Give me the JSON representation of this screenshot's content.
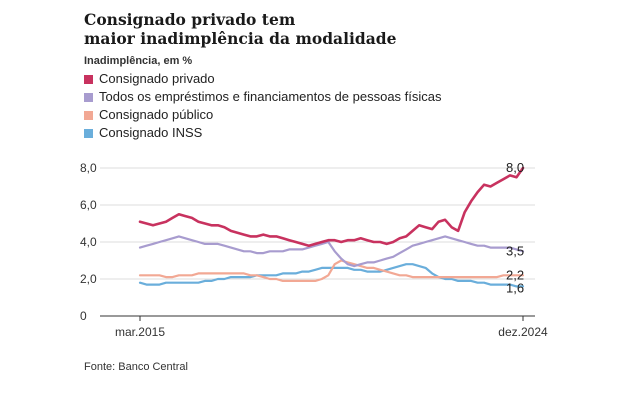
{
  "title_line1": "Consignado privado tem",
  "title_line2": "maior inadimplência da modalidade",
  "source": "Fonte: Banco Central",
  "chart_data": {
    "type": "line",
    "title": "Consignado privado tem maior inadimplência da modalidade",
    "ylabel": "Inadimplência, em %",
    "ylim": [
      0,
      8
    ],
    "yticks": [
      "0",
      "2,0",
      "4,0",
      "6,0",
      "8,0"
    ],
    "yticks_values": [
      0,
      2,
      4,
      6,
      8
    ],
    "xticks": [
      "mar.2015",
      "dez.2024"
    ],
    "x_start": "2015-03",
    "x_end": "2024-12",
    "grid": true,
    "legend_position": "top-left",
    "series": [
      {
        "name": "Consignado privado",
        "color": "#c8325f",
        "end_label": "8,0",
        "values": [
          5.1,
          5.0,
          4.9,
          5.0,
          5.1,
          5.3,
          5.5,
          5.4,
          5.3,
          5.1,
          5.0,
          4.9,
          4.9,
          4.8,
          4.6,
          4.5,
          4.4,
          4.3,
          4.3,
          4.4,
          4.3,
          4.3,
          4.2,
          4.1,
          4.0,
          3.9,
          3.8,
          3.9,
          4.0,
          4.1,
          4.1,
          4.0,
          4.1,
          4.1,
          4.2,
          4.1,
          4.0,
          4.0,
          3.9,
          4.0,
          4.2,
          4.3,
          4.6,
          4.9,
          4.8,
          4.7,
          5.1,
          5.2,
          4.8,
          4.6,
          5.6,
          6.2,
          6.7,
          7.1,
          7.0,
          7.2,
          7.4,
          7.6,
          7.5,
          8.0
        ]
      },
      {
        "name": "Todos os empréstimos e financiamentos de pessoas físicas",
        "color": "#a89ccf",
        "end_label": "3,5",
        "values": [
          3.7,
          3.8,
          3.9,
          4.0,
          4.1,
          4.2,
          4.3,
          4.2,
          4.1,
          4.0,
          3.9,
          3.9,
          3.9,
          3.8,
          3.7,
          3.6,
          3.5,
          3.5,
          3.4,
          3.4,
          3.5,
          3.5,
          3.5,
          3.6,
          3.6,
          3.6,
          3.7,
          3.8,
          3.9,
          4.0,
          3.5,
          3.1,
          2.8,
          2.7,
          2.8,
          2.9,
          2.9,
          3.0,
          3.1,
          3.2,
          3.4,
          3.6,
          3.8,
          3.9,
          4.0,
          4.1,
          4.2,
          4.3,
          4.2,
          4.1,
          4.0,
          3.9,
          3.8,
          3.8,
          3.7,
          3.7,
          3.7,
          3.7,
          3.6,
          3.5
        ]
      },
      {
        "name": "Consignado público",
        "color": "#f2a894",
        "end_label": "2,2",
        "values": [
          2.2,
          2.2,
          2.2,
          2.2,
          2.1,
          2.1,
          2.2,
          2.2,
          2.2,
          2.3,
          2.3,
          2.3,
          2.3,
          2.3,
          2.3,
          2.3,
          2.3,
          2.2,
          2.2,
          2.1,
          2.0,
          2.0,
          1.9,
          1.9,
          1.9,
          1.9,
          1.9,
          1.9,
          2.0,
          2.2,
          2.8,
          3.0,
          2.9,
          2.8,
          2.7,
          2.6,
          2.6,
          2.5,
          2.4,
          2.3,
          2.2,
          2.2,
          2.1,
          2.1,
          2.1,
          2.1,
          2.1,
          2.1,
          2.1,
          2.1,
          2.1,
          2.1,
          2.1,
          2.1,
          2.1,
          2.1,
          2.2,
          2.2,
          2.2,
          2.2
        ]
      },
      {
        "name": "Consignado INSS",
        "color": "#6aaedb",
        "end_label": "1,6",
        "values": [
          1.8,
          1.7,
          1.7,
          1.7,
          1.8,
          1.8,
          1.8,
          1.8,
          1.8,
          1.8,
          1.9,
          1.9,
          2.0,
          2.0,
          2.1,
          2.1,
          2.1,
          2.1,
          2.2,
          2.2,
          2.2,
          2.2,
          2.3,
          2.3,
          2.3,
          2.4,
          2.4,
          2.5,
          2.6,
          2.6,
          2.6,
          2.6,
          2.6,
          2.5,
          2.5,
          2.4,
          2.4,
          2.4,
          2.5,
          2.6,
          2.7,
          2.8,
          2.8,
          2.7,
          2.6,
          2.3,
          2.1,
          2.0,
          2.0,
          1.9,
          1.9,
          1.9,
          1.8,
          1.8,
          1.7,
          1.7,
          1.7,
          1.7,
          1.6,
          1.6
        ]
      }
    ]
  }
}
